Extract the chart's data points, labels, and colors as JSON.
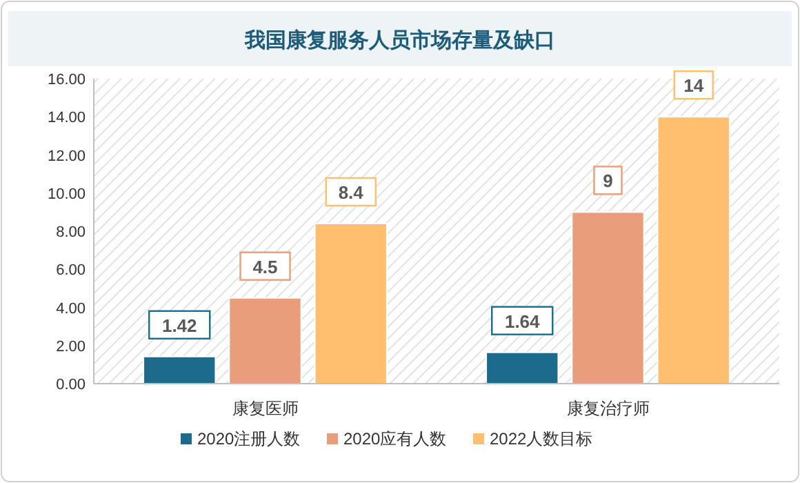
{
  "chart_data": {
    "type": "bar",
    "title": "我国康复服务人员市场存量及缺口",
    "categories": [
      "康复医师",
      "康复治疗师"
    ],
    "series": [
      {
        "name": "2020注册人数",
        "color": "#1d6b8c",
        "values": [
          1.42,
          1.64
        ]
      },
      {
        "name": "2020应有人数",
        "color": "#e89e7a",
        "values": [
          4.5,
          9
        ]
      },
      {
        "name": "2022人数目标",
        "color": "#ffbf6e",
        "values": [
          8.4,
          14
        ]
      }
    ],
    "ylim": [
      0,
      16
    ],
    "yticks": [
      {
        "value": 0,
        "label": "0.00"
      },
      {
        "value": 2,
        "label": "2.00"
      },
      {
        "value": 4,
        "label": "4.00"
      },
      {
        "value": 6,
        "label": "6.00"
      },
      {
        "value": 8,
        "label": "8.00"
      },
      {
        "value": 10,
        "label": "10.00"
      },
      {
        "value": 12,
        "label": "12.00"
      },
      {
        "value": 14,
        "label": "14.00"
      },
      {
        "value": 16,
        "label": "16.00"
      }
    ],
    "data_labels": true,
    "legend": "bottom",
    "grid": false
  }
}
